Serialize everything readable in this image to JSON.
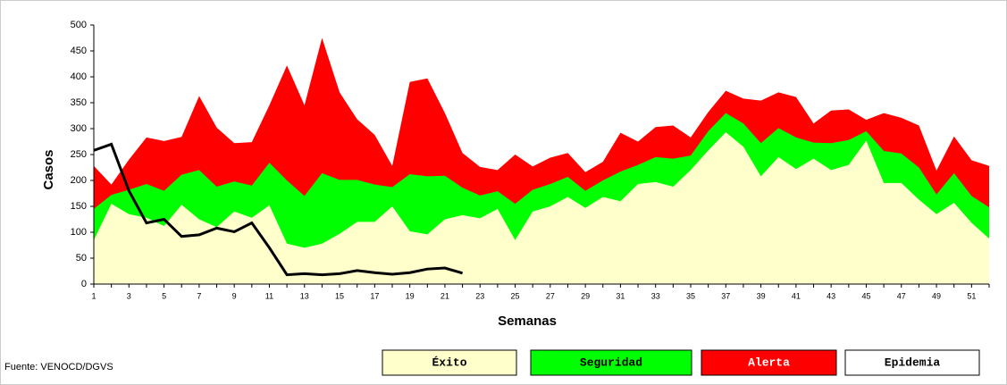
{
  "chart_data": {
    "type": "area",
    "y_label": "Casos",
    "x_label": "Semanas",
    "source": "Fuente: VENOCD/DGVS",
    "x": [
      1,
      2,
      3,
      4,
      5,
      6,
      7,
      8,
      9,
      10,
      11,
      12,
      13,
      14,
      15,
      16,
      17,
      18,
      19,
      20,
      21,
      22,
      23,
      24,
      25,
      26,
      27,
      28,
      29,
      30,
      31,
      32,
      33,
      34,
      35,
      36,
      37,
      38,
      39,
      40,
      41,
      42,
      43,
      44,
      45,
      46,
      47,
      48,
      49,
      50,
      51,
      52
    ],
    "xlim": [
      1,
      52
    ],
    "xticks": [
      1,
      3,
      5,
      7,
      9,
      11,
      13,
      15,
      17,
      19,
      21,
      23,
      25,
      27,
      29,
      31,
      33,
      35,
      37,
      39,
      41,
      43,
      45,
      47,
      49,
      51
    ],
    "ylim": [
      0,
      500
    ],
    "yticks": [
      0,
      50,
      100,
      150,
      200,
      250,
      300,
      350,
      400,
      450,
      500
    ],
    "series": [
      {
        "name": "Éxito",
        "color": "#ffffcc",
        "type": "area",
        "values": [
          85,
          155,
          135,
          128,
          112,
          153,
          125,
          110,
          140,
          128,
          152,
          78,
          70,
          78,
          97,
          120,
          120,
          150,
          102,
          96,
          125,
          133,
          127,
          145,
          85,
          140,
          150,
          168,
          147,
          168,
          160,
          193,
          197,
          188,
          220,
          258,
          293,
          265,
          208,
          245,
          222,
          242,
          220,
          230,
          277,
          195,
          195,
          163,
          135,
          157,
          118,
          88
        ]
      },
      {
        "name": "Seguridad",
        "color": "#00ff00",
        "type": "area",
        "values": [
          145,
          172,
          182,
          193,
          180,
          211,
          220,
          188,
          198,
          190,
          234,
          200,
          170,
          214,
          201,
          201,
          192,
          187,
          212,
          208,
          209,
          186,
          171,
          179,
          155,
          182,
          193,
          207,
          180,
          200,
          217,
          230,
          245,
          242,
          248,
          295,
          330,
          310,
          272,
          301,
          283,
          273,
          272,
          278,
          295,
          257,
          252,
          225,
          173,
          214,
          170,
          148
        ]
      },
      {
        "name": "Alerta",
        "color": "#ff0000",
        "type": "area",
        "values": [
          228,
          192,
          240,
          283,
          276,
          284,
          363,
          302,
          272,
          274,
          345,
          422,
          345,
          475,
          370,
          318,
          288,
          228,
          390,
          397,
          330,
          253,
          226,
          220,
          250,
          227,
          244,
          253,
          216,
          236,
          292,
          275,
          303,
          306,
          283,
          332,
          373,
          358,
          354,
          370,
          361,
          310,
          335,
          337,
          317,
          330,
          321,
          306,
          219,
          285,
          239,
          228
        ]
      },
      {
        "name": "Epidemia",
        "color": "#000000",
        "legend_fill": "#ffffff",
        "type": "line",
        "values": [
          258,
          270,
          180,
          118,
          125,
          92,
          95,
          108,
          101,
          118,
          70,
          18,
          20,
          18,
          20,
          26,
          22,
          19,
          22,
          29,
          31,
          21,
          null,
          null,
          null,
          null,
          null,
          null,
          null,
          null,
          null,
          null,
          null,
          null,
          null,
          null,
          null,
          null,
          null,
          null,
          null,
          null,
          null,
          null,
          null,
          null,
          null,
          null,
          null,
          null,
          null,
          null
        ]
      }
    ]
  }
}
